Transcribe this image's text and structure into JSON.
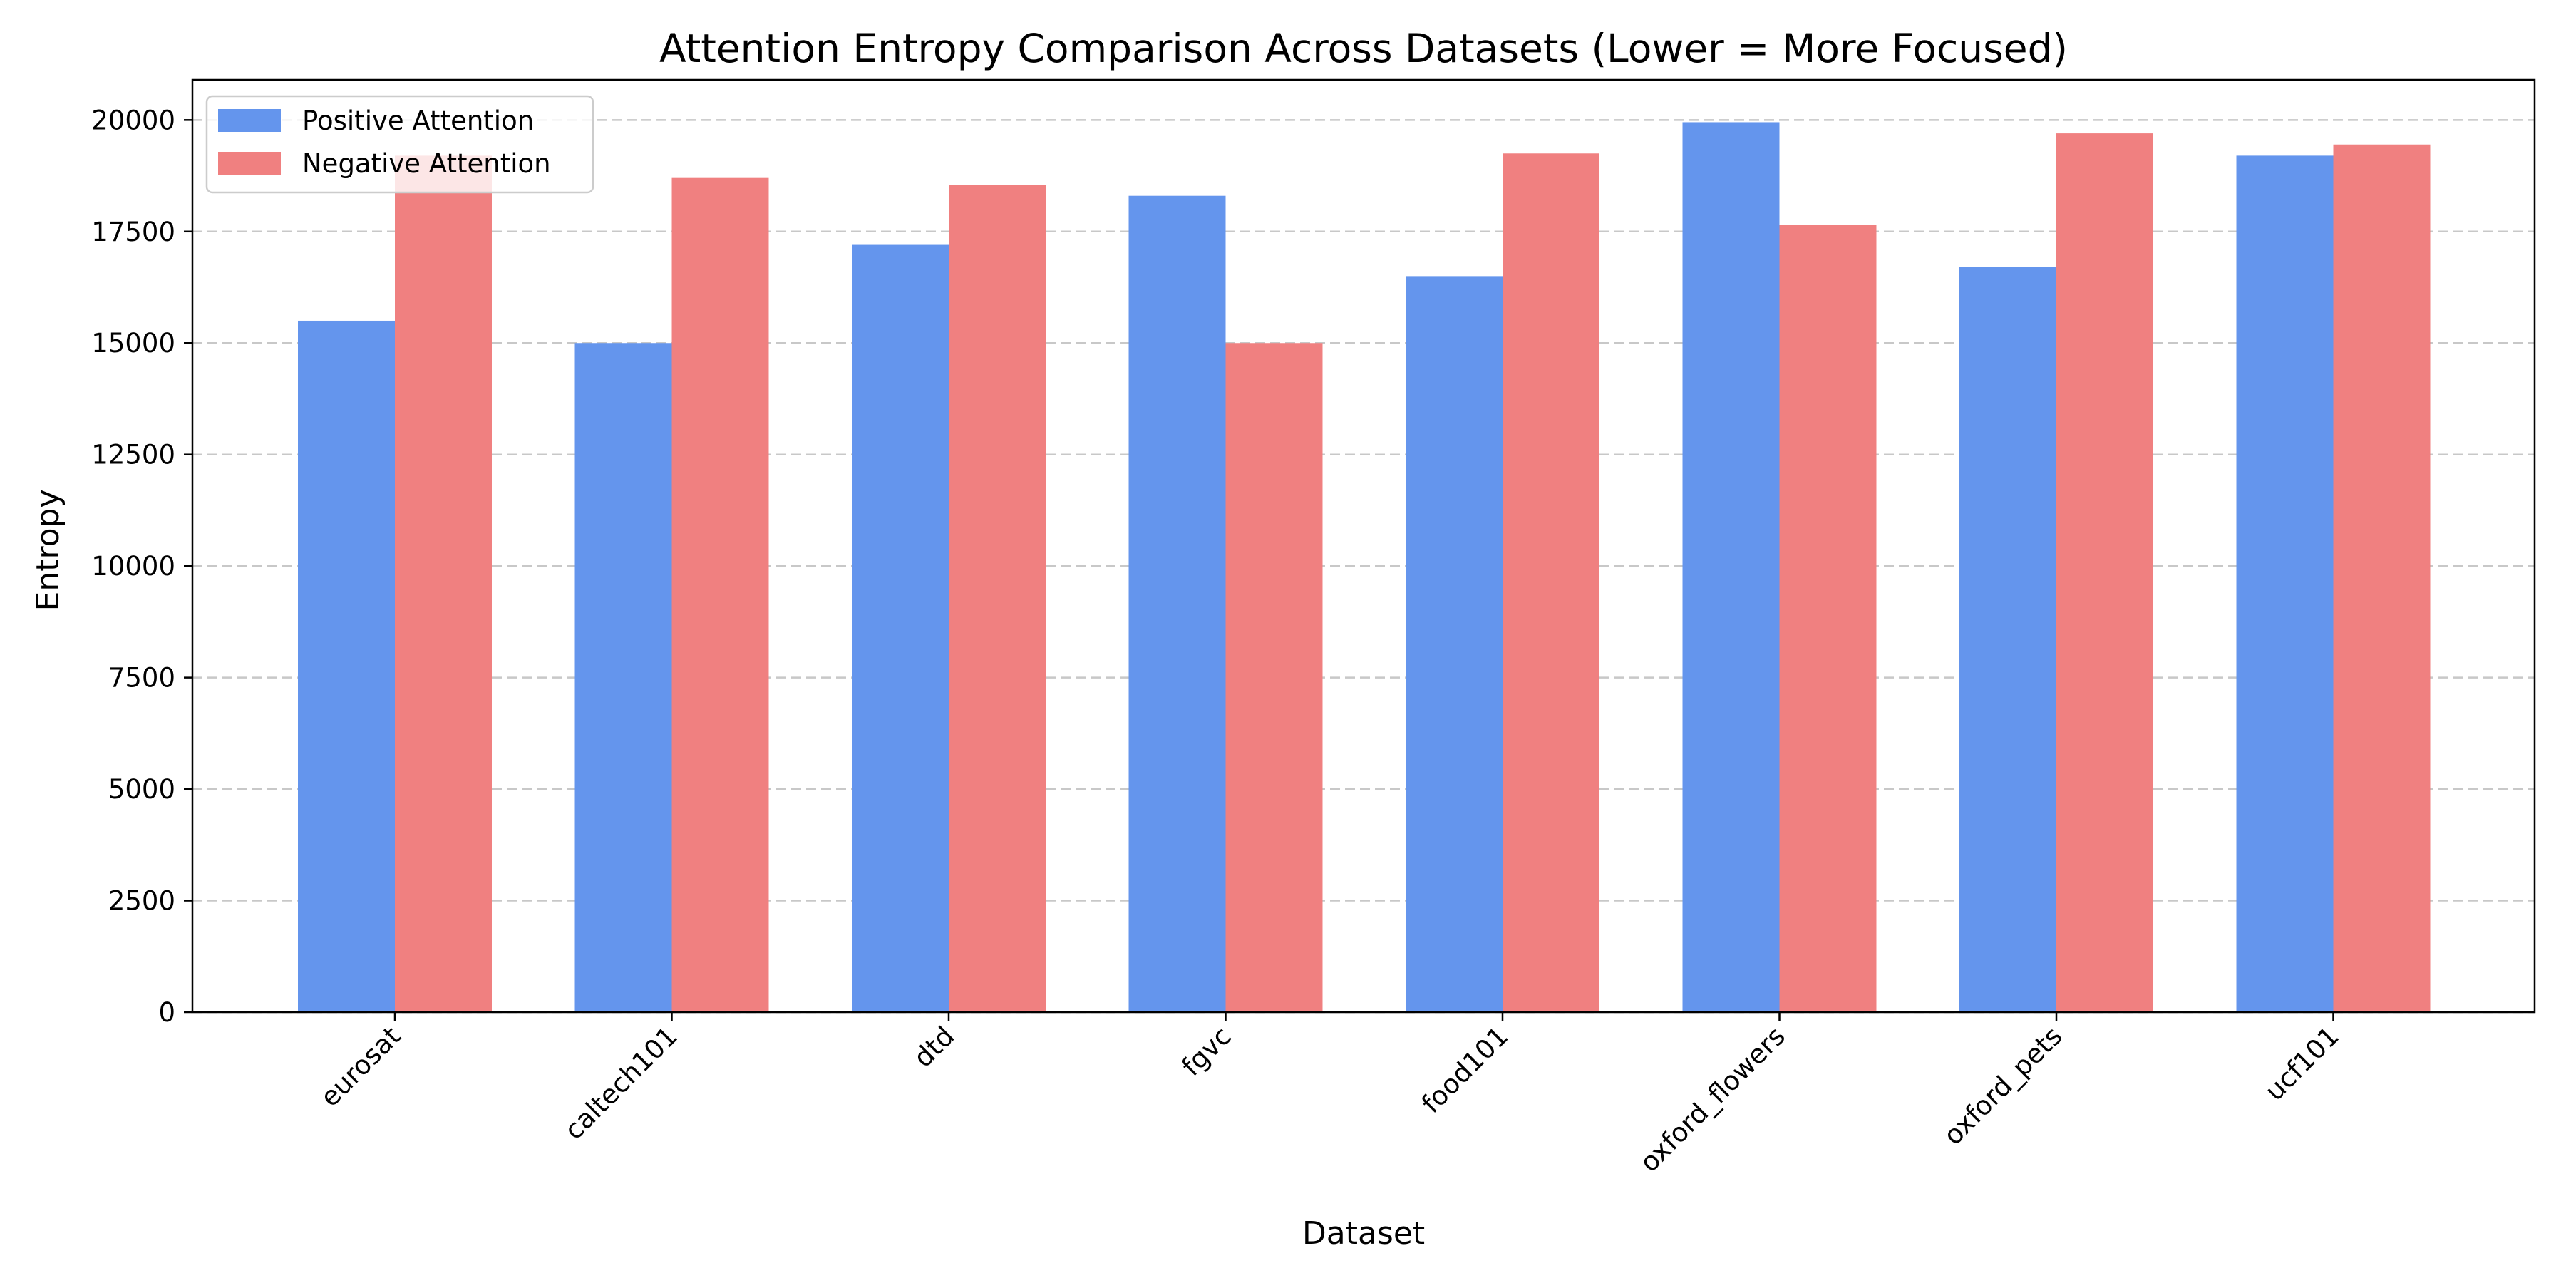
{
  "colors": {
    "positive": "#6495ED",
    "negative": "#F08080",
    "grid": "#c8c8c8",
    "axis": "#000000"
  },
  "chart_data": {
    "type": "bar",
    "title": "Attention Entropy Comparison Across Datasets (Lower = More Focused)",
    "xlabel": "Dataset",
    "ylabel": "Entropy",
    "categories": [
      "eurosat",
      "caltech101",
      "dtd",
      "fgvc",
      "food101",
      "oxford_flowers",
      "oxford_pets",
      "ucf101"
    ],
    "series": [
      {
        "name": "Positive Attention",
        "values": [
          15500,
          15000,
          17200,
          18300,
          16500,
          19950,
          16700,
          19200
        ]
      },
      {
        "name": "Negative Attention",
        "values": [
          19200,
          18700,
          18550,
          15000,
          19250,
          17650,
          19700,
          19450
        ]
      }
    ],
    "ylim": [
      0,
      20900
    ],
    "yticks": [
      0,
      2500,
      5000,
      7500,
      10000,
      12500,
      15000,
      17500,
      20000
    ],
    "ytick_labels": [
      "0",
      "2500",
      "5000",
      "7500",
      "10000",
      "12500",
      "15000",
      "17500",
      "20000"
    ],
    "grid": "y-dashed",
    "legend_position": "top-left"
  }
}
